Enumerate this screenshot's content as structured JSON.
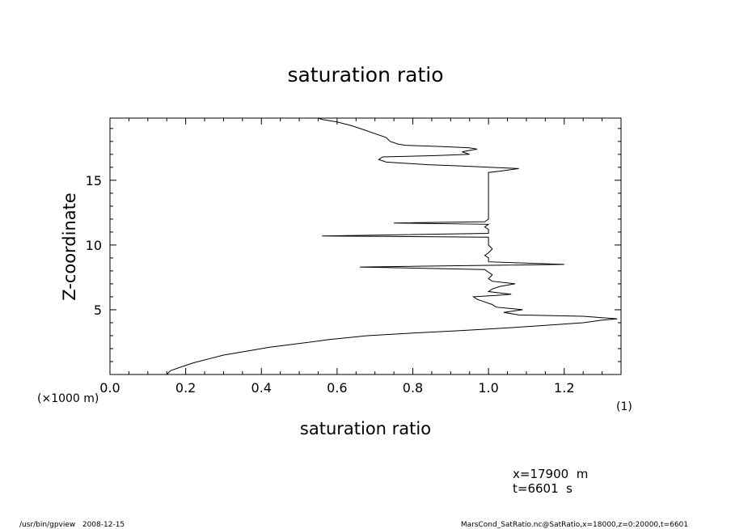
{
  "chart_data": {
    "type": "line",
    "title": "saturation ratio",
    "xlabel": "saturation ratio",
    "ylabel": "Z-coordinate",
    "x_unit_note": "(1)",
    "y_unit_note": "(×1000 m)",
    "xlim": [
      0,
      1.35
    ],
    "ylim": [
      0,
      19.8
    ],
    "x_ticks": [
      0.0,
      0.2,
      0.4,
      0.6,
      0.8,
      1.0,
      1.2
    ],
    "x_tick_labels": [
      "0.0",
      "0.2",
      "0.4",
      "0.6",
      "0.8",
      "1.0",
      "1.2"
    ],
    "y_ticks": [
      5,
      10,
      15
    ],
    "y_tick_labels": [
      "5",
      "10",
      "15"
    ],
    "grid": false,
    "series": [
      {
        "color": "#000000",
        "points": [
          [
            0.15,
            0.0
          ],
          [
            0.16,
            0.3
          ],
          [
            0.19,
            0.6
          ],
          [
            0.22,
            0.9
          ],
          [
            0.26,
            1.2
          ],
          [
            0.3,
            1.5
          ],
          [
            0.36,
            1.8
          ],
          [
            0.42,
            2.1
          ],
          [
            0.5,
            2.4
          ],
          [
            0.58,
            2.7
          ],
          [
            0.68,
            3.0
          ],
          [
            0.8,
            3.2
          ],
          [
            0.93,
            3.4
          ],
          [
            1.05,
            3.6
          ],
          [
            1.15,
            3.8
          ],
          [
            1.25,
            4.0
          ],
          [
            1.3,
            4.2
          ],
          [
            1.34,
            4.3
          ],
          [
            1.25,
            4.5
          ],
          [
            1.08,
            4.6
          ],
          [
            1.04,
            4.8
          ],
          [
            1.09,
            5.0
          ],
          [
            1.02,
            5.2
          ],
          [
            1.01,
            5.4
          ],
          [
            0.99,
            5.6
          ],
          [
            0.97,
            5.8
          ],
          [
            0.96,
            6.0
          ],
          [
            1.02,
            6.1
          ],
          [
            1.06,
            6.2
          ],
          [
            1.0,
            6.4
          ],
          [
            1.01,
            6.6
          ],
          [
            1.03,
            6.8
          ],
          [
            1.07,
            7.0
          ],
          [
            1.01,
            7.2
          ],
          [
            1.0,
            7.4
          ],
          [
            1.01,
            7.7
          ],
          [
            1.0,
            7.9
          ],
          [
            0.99,
            8.1
          ],
          [
            0.66,
            8.3
          ],
          [
            1.2,
            8.5
          ],
          [
            1.0,
            8.7
          ],
          [
            1.0,
            9.0
          ],
          [
            0.99,
            9.2
          ],
          [
            1.0,
            9.4
          ],
          [
            1.01,
            9.7
          ],
          [
            1.0,
            10.0
          ],
          [
            1.0,
            10.4
          ],
          [
            1.0,
            10.6
          ],
          [
            0.56,
            10.7
          ],
          [
            1.0,
            10.9
          ],
          [
            1.0,
            11.2
          ],
          [
            0.99,
            11.4
          ],
          [
            1.0,
            11.6
          ],
          [
            0.75,
            11.7
          ],
          [
            0.99,
            11.8
          ],
          [
            1.0,
            12.0
          ],
          [
            1.0,
            13.0
          ],
          [
            1.0,
            14.0
          ],
          [
            1.0,
            15.0
          ],
          [
            1.0,
            15.6
          ],
          [
            1.03,
            15.7
          ],
          [
            1.08,
            15.9
          ],
          [
            1.0,
            16.0
          ],
          [
            0.93,
            16.1
          ],
          [
            0.84,
            16.2
          ],
          [
            0.73,
            16.4
          ],
          [
            0.71,
            16.6
          ],
          [
            0.72,
            16.8
          ],
          [
            0.86,
            16.9
          ],
          [
            0.95,
            17.0
          ],
          [
            0.93,
            17.2
          ],
          [
            0.97,
            17.4
          ],
          [
            0.95,
            17.5
          ],
          [
            0.88,
            17.6
          ],
          [
            0.78,
            17.7
          ],
          [
            0.76,
            17.8
          ],
          [
            0.74,
            18.0
          ],
          [
            0.73,
            18.3
          ],
          [
            0.7,
            18.6
          ],
          [
            0.67,
            18.9
          ],
          [
            0.64,
            19.2
          ],
          [
            0.6,
            19.5
          ],
          [
            0.56,
            19.7
          ],
          [
            0.55,
            19.8
          ]
        ]
      }
    ]
  },
  "annotations": {
    "position_x": "x=17900  m",
    "time": "t=6601  s"
  },
  "footer": {
    "left": "/usr/bin/gpview   2008-12-15",
    "right": "MarsCond_SatRatio.nc@SatRatio,x=18000,z=0:20000,t=6601"
  }
}
